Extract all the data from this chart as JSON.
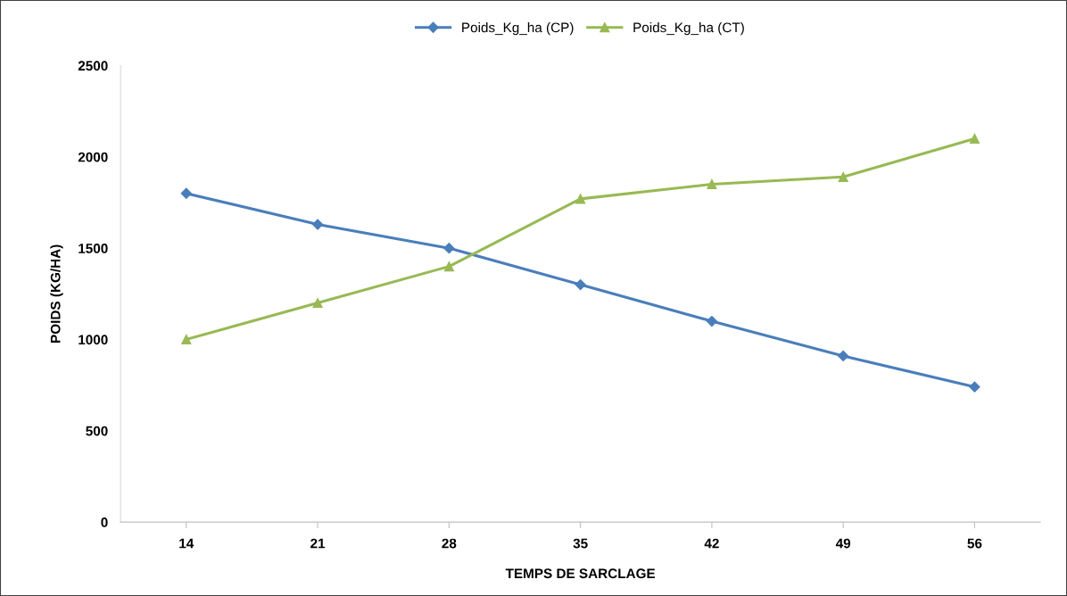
{
  "chart_data": {
    "type": "line",
    "xlabel": "TEMPS DE SARCLAGE",
    "ylabel": "POIDS (KG/HA)",
    "categories": [
      "14",
      "21",
      "28",
      "35",
      "42",
      "49",
      "56"
    ],
    "series": [
      {
        "name": "Poids_Kg_ha (CP)",
        "color": "#4a7ebb",
        "marker": "diamond",
        "values": [
          1800,
          1630,
          1500,
          1300,
          1100,
          910,
          740
        ]
      },
      {
        "name": "Poids_Kg_ha (CT)",
        "color": "#98b954",
        "marker": "triangle",
        "values": [
          1000,
          1200,
          1400,
          1770,
          1850,
          1890,
          2100
        ]
      }
    ],
    "ylim": [
      0,
      2500
    ],
    "yticks": [
      0,
      500,
      1000,
      1500,
      2000,
      2500
    ],
    "grid": false,
    "legend": "top",
    "line_style": "solid"
  }
}
